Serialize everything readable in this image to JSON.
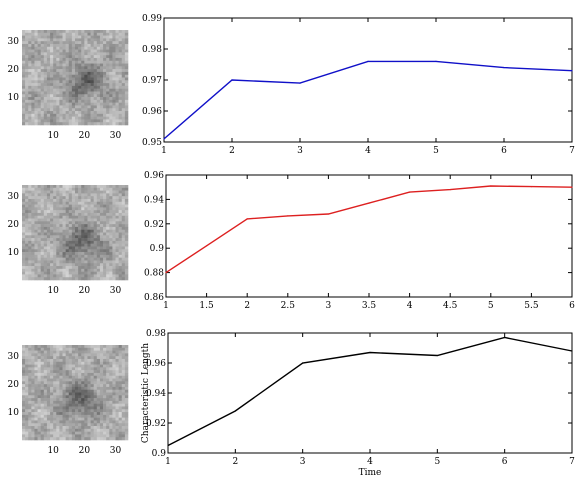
{
  "chart_data": [
    {
      "type": "heatmap",
      "ticks_x": [
        "10",
        "20",
        "30"
      ],
      "ticks_y": [
        "30",
        "20",
        "10"
      ],
      "colormap": "grayscale",
      "dark_center": [
        20,
        18
      ]
    },
    {
      "type": "line",
      "x": [
        1,
        2,
        3,
        4,
        5,
        6,
        7
      ],
      "series": [
        {
          "values": [
            0.951,
            0.97,
            0.969,
            0.976,
            0.976,
            0.974,
            0.973
          ],
          "color": "#1010c8"
        }
      ],
      "xlim": [
        1,
        7
      ],
      "ylim": [
        0.95,
        0.99
      ],
      "x_ticks": [
        "1",
        "2",
        "3",
        "4",
        "5",
        "6",
        "7"
      ],
      "y_ticks": [
        "0.95",
        "0.96",
        "0.97",
        "0.98",
        "0.99"
      ],
      "y_tick_labels": [
        "0.95",
        "0.96",
        "0.97",
        "0.98",
        "0.99"
      ]
    },
    {
      "type": "heatmap",
      "ticks_x": [
        "10",
        "20",
        "30"
      ],
      "ticks_y": [
        "30",
        "20",
        "10"
      ],
      "colormap": "grayscale",
      "dark_center": [
        19,
        20
      ]
    },
    {
      "type": "line",
      "x": [
        1,
        1.5,
        2,
        2.5,
        3,
        3.5,
        4,
        4.5,
        5,
        5.5,
        6
      ],
      "series": [
        {
          "values": [
            0.88,
            0.902,
            0.924,
            0.9265,
            0.928,
            0.937,
            0.946,
            0.948,
            0.951,
            0.9505,
            0.95
          ],
          "color": "#dd2020"
        }
      ],
      "xlim": [
        1,
        6
      ],
      "ylim": [
        0.86,
        0.96
      ],
      "x_ticks": [
        "1",
        "1.5",
        "2",
        "2.5",
        "3",
        "3.5",
        "4",
        "4.5",
        "5",
        "5.5",
        "6"
      ],
      "y_ticks": [
        "0.86",
        "0.88",
        "0.9",
        "0.92",
        "0.94",
        "0.96"
      ],
      "y_tick_labels": [
        "0.86",
        "0.88",
        "0.9",
        "0.92",
        "0.94",
        "0.96"
      ]
    },
    {
      "type": "heatmap",
      "ticks_x": [
        "10",
        "20",
        "30"
      ],
      "ticks_y": [
        "30",
        "20",
        "10"
      ],
      "colormap": "grayscale",
      "dark_center": [
        18,
        19
      ]
    },
    {
      "type": "line",
      "x": [
        1,
        2,
        3,
        4,
        5,
        6,
        7
      ],
      "series": [
        {
          "values": [
            0.905,
            0.928,
            0.96,
            0.967,
            0.965,
            0.977,
            0.968
          ],
          "color": "#000000"
        }
      ],
      "xlim": [
        1,
        7
      ],
      "ylim": [
        0.9,
        0.98
      ],
      "x_ticks": [
        "1",
        "2",
        "3",
        "4",
        "5",
        "6",
        "7"
      ],
      "y_ticks": [
        "0.9",
        "0.92",
        "0.94",
        "0.96",
        "0.98"
      ],
      "y_tick_labels": [
        "0.9",
        "0.92",
        "0.94",
        "0.96",
        "0.98"
      ],
      "xlabel": "Time",
      "ylabel": "Characteristic Length"
    }
  ]
}
